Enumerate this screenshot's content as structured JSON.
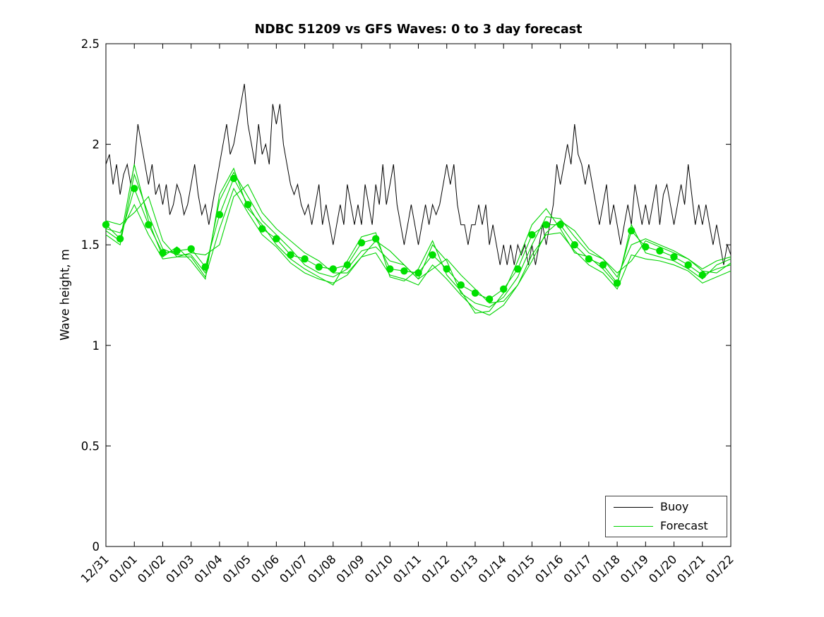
{
  "colors": {
    "buoy": "#000000",
    "forecast": "#00d400",
    "marker": "#00e000",
    "axis": "#000000",
    "legend_border": "#404040"
  },
  "legend": {
    "items": [
      {
        "label": "Buoy"
      },
      {
        "label": "Forecast"
      }
    ]
  },
  "chart_data": {
    "type": "line",
    "title": "NDBC 51209 vs GFS Waves: 0 to 3 day forecast",
    "xlabel": "",
    "ylabel": "Wave height, m",
    "ylim": [
      0,
      2.5
    ],
    "yticks": [
      0,
      0.5,
      1,
      1.5,
      2,
      2.5
    ],
    "ytick_labels": [
      "0",
      "0.5",
      "1",
      "1.5",
      "2",
      "2.5"
    ],
    "xlim_days": [
      0,
      22
    ],
    "xtick_days": [
      0,
      1,
      2,
      3,
      4,
      5,
      6,
      7,
      8,
      9,
      10,
      11,
      12,
      13,
      14,
      15,
      16,
      17,
      18,
      19,
      20,
      21,
      22
    ],
    "xtick_labels": [
      "12/31",
      "01/01",
      "01/02",
      "01/03",
      "01/04",
      "01/05",
      "01/06",
      "01/07",
      "01/08",
      "01/09",
      "01/10",
      "01/11",
      "01/12",
      "01/13",
      "01/14",
      "01/15",
      "01/16",
      "01/17",
      "01/18",
      "01/19",
      "01/20",
      "01/21",
      "01/22"
    ],
    "legend_position": "bottom-right",
    "grid": false,
    "buoy": {
      "name": "Buoy",
      "start_day": 0,
      "interval_days": 0.125,
      "values": [
        1.9,
        1.95,
        1.8,
        1.9,
        1.75,
        1.85,
        1.9,
        1.8,
        1.9,
        2.1,
        2.0,
        1.9,
        1.8,
        1.9,
        1.75,
        1.8,
        1.7,
        1.8,
        1.65,
        1.7,
        1.8,
        1.75,
        1.65,
        1.7,
        1.8,
        1.9,
        1.75,
        1.65,
        1.7,
        1.6,
        1.7,
        1.8,
        1.9,
        2.0,
        2.1,
        1.95,
        2.0,
        2.1,
        2.2,
        2.3,
        2.1,
        2.0,
        1.9,
        2.1,
        1.95,
        2.0,
        1.9,
        2.2,
        2.1,
        2.2,
        2.0,
        1.9,
        1.8,
        1.75,
        1.8,
        1.7,
        1.65,
        1.7,
        1.6,
        1.7,
        1.8,
        1.6,
        1.7,
        1.6,
        1.5,
        1.6,
        1.7,
        1.6,
        1.8,
        1.7,
        1.6,
        1.7,
        1.6,
        1.8,
        1.7,
        1.6,
        1.8,
        1.7,
        1.9,
        1.7,
        1.8,
        1.9,
        1.7,
        1.6,
        1.5,
        1.6,
        1.7,
        1.6,
        1.5,
        1.6,
        1.7,
        1.6,
        1.7,
        1.65,
        1.7,
        1.8,
        1.9,
        1.8,
        1.9,
        1.7,
        1.6,
        1.6,
        1.5,
        1.6,
        1.6,
        1.7,
        1.6,
        1.7,
        1.5,
        1.6,
        1.5,
        1.4,
        1.5,
        1.4,
        1.5,
        1.4,
        1.5,
        1.45,
        1.5,
        1.4,
        1.5,
        1.4,
        1.5,
        1.6,
        1.5,
        1.6,
        1.7,
        1.9,
        1.8,
        1.9,
        2.0,
        1.9,
        2.1,
        1.95,
        1.9,
        1.8,
        1.9,
        1.8,
        1.7,
        1.6,
        1.7,
        1.8,
        1.6,
        1.7,
        1.6,
        1.5,
        1.6,
        1.7,
        1.6,
        1.8,
        1.7,
        1.6,
        1.7,
        1.6,
        1.7,
        1.8,
        1.6,
        1.75,
        1.8,
        1.7,
        1.6,
        1.7,
        1.8,
        1.7,
        1.9,
        1.75,
        1.6,
        1.7,
        1.6,
        1.7,
        1.6,
        1.5,
        1.6,
        1.5,
        1.4,
        1.5,
        1.45
      ]
    },
    "forecast": {
      "name": "Forecast",
      "start_day": 0,
      "interval_days": 0.5,
      "runs": [
        [
          1.6,
          1.53,
          1.78,
          1.6,
          1.46,
          1.47,
          1.48,
          1.39,
          1.65,
          1.83,
          1.7,
          1.58,
          1.53,
          1.45,
          1.43,
          1.39,
          1.38,
          1.4,
          1.51,
          1.53,
          1.38,
          1.37,
          1.36,
          1.45,
          1.38,
          1.3,
          1.26,
          1.23,
          1.28,
          1.38,
          1.55,
          1.6,
          1.6,
          1.5,
          1.43,
          1.4,
          1.31,
          1.57,
          1.49,
          1.47,
          1.44,
          1.4,
          1.35,
          1.38,
          1.4
        ],
        [
          1.55,
          1.5,
          1.85,
          1.65,
          1.48,
          1.45,
          1.45,
          1.36,
          1.72,
          1.86,
          1.74,
          1.62,
          1.55,
          1.48,
          1.4,
          1.36,
          1.34,
          1.38,
          1.47,
          1.49,
          1.42,
          1.4,
          1.33,
          1.5,
          1.42,
          1.26,
          1.21,
          1.19,
          1.24,
          1.34,
          1.5,
          1.64,
          1.63,
          1.54,
          1.46,
          1.43,
          1.34,
          1.5,
          1.53,
          1.5,
          1.47,
          1.43,
          1.38,
          1.42,
          1.44
        ],
        [
          1.58,
          1.56,
          1.7,
          1.55,
          1.43,
          1.44,
          1.44,
          1.34,
          1.58,
          1.78,
          1.66,
          1.55,
          1.49,
          1.41,
          1.36,
          1.33,
          1.31,
          1.35,
          1.44,
          1.46,
          1.35,
          1.33,
          1.3,
          1.4,
          1.33,
          1.25,
          1.18,
          1.15,
          1.2,
          1.3,
          1.45,
          1.55,
          1.56,
          1.47,
          1.4,
          1.36,
          1.28,
          1.45,
          1.43,
          1.42,
          1.4,
          1.37,
          1.31,
          1.34,
          1.37
        ],
        [
          1.62,
          1.6,
          1.66,
          1.74,
          1.52,
          1.44,
          1.46,
          1.45,
          1.5,
          1.74,
          1.8,
          1.66,
          1.58,
          1.52,
          1.46,
          1.42,
          1.36,
          1.36,
          1.44,
          1.52,
          1.47,
          1.4,
          1.33,
          1.38,
          1.43,
          1.35,
          1.28,
          1.21,
          1.22,
          1.3,
          1.42,
          1.56,
          1.62,
          1.57,
          1.48,
          1.43,
          1.36,
          1.42,
          1.52,
          1.49,
          1.46,
          1.43,
          1.37,
          1.36,
          1.41
        ],
        [
          1.57,
          1.52,
          1.9,
          1.62,
          1.44,
          1.49,
          1.42,
          1.33,
          1.75,
          1.88,
          1.68,
          1.6,
          1.5,
          1.43,
          1.38,
          1.34,
          1.3,
          1.42,
          1.54,
          1.56,
          1.34,
          1.32,
          1.38,
          1.52,
          1.35,
          1.27,
          1.16,
          1.17,
          1.26,
          1.42,
          1.6,
          1.68,
          1.58,
          1.46,
          1.44,
          1.38,
          1.3,
          1.6,
          1.46,
          1.44,
          1.42,
          1.38,
          1.33,
          1.4,
          1.43
        ]
      ],
      "markers": {
        "start_day": 0,
        "interval_days": 0.5,
        "values": [
          1.6,
          1.53,
          1.78,
          1.6,
          1.46,
          1.47,
          1.48,
          1.39,
          1.65,
          1.83,
          1.7,
          1.58,
          1.53,
          1.45,
          1.43,
          1.39,
          1.38,
          1.4,
          1.51,
          1.53,
          1.38,
          1.37,
          1.36,
          1.45,
          1.38,
          1.3,
          1.26,
          1.23,
          1.28,
          1.38,
          1.55,
          1.6,
          1.6,
          1.5,
          1.43,
          1.4,
          1.31,
          1.57,
          1.49,
          1.47,
          1.44,
          1.4,
          1.35
        ]
      }
    }
  }
}
